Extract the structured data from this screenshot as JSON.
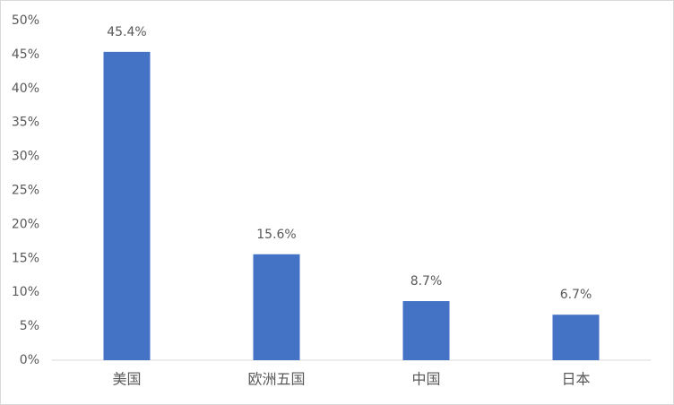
{
  "chart_data": {
    "type": "bar",
    "categories": [
      "美国",
      "欧洲五国",
      "中国",
      "日本"
    ],
    "values": [
      45.4,
      15.6,
      8.7,
      6.7
    ],
    "value_labels": [
      "45.4%",
      "15.6%",
      "8.7%",
      "6.7%"
    ],
    "color": "#4472c4",
    "ylim": [
      0,
      50
    ],
    "yticks": [
      {
        "value": 0,
        "label": "0%"
      },
      {
        "value": 5,
        "label": "5%"
      },
      {
        "value": 10,
        "label": "10%"
      },
      {
        "value": 15,
        "label": "15%"
      },
      {
        "value": 20,
        "label": "20%"
      },
      {
        "value": 25,
        "label": "25%"
      },
      {
        "value": 30,
        "label": "30%"
      },
      {
        "value": 35,
        "label": "35%"
      },
      {
        "value": 40,
        "label": "40%"
      },
      {
        "value": 45,
        "label": "45%"
      },
      {
        "value": 50,
        "label": "50%"
      }
    ],
    "grid": false
  }
}
